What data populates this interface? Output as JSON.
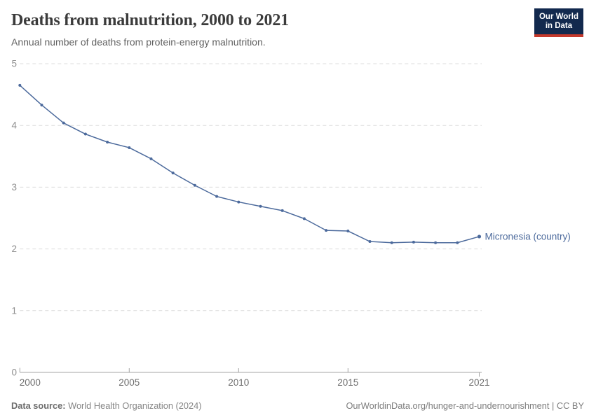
{
  "header": {
    "title": "Deaths from malnutrition, 2000 to 2021",
    "subtitle": "Annual number of deaths from protein-energy malnutrition.",
    "logo": {
      "line1": "Our World",
      "line2": "in Data"
    }
  },
  "chart_data": {
    "type": "line",
    "title": "Deaths from malnutrition, 2000 to 2021",
    "subtitle": "Annual number of deaths from protein-energy malnutrition.",
    "x": [
      2000,
      2001,
      2002,
      2003,
      2004,
      2005,
      2006,
      2007,
      2008,
      2009,
      2010,
      2011,
      2012,
      2013,
      2014,
      2015,
      2016,
      2017,
      2018,
      2019,
      2020,
      2021
    ],
    "series": [
      {
        "name": "Micronesia (country)",
        "color": "#4C6A9C",
        "values": [
          4.65,
          4.33,
          4.04,
          3.86,
          3.73,
          3.64,
          3.46,
          3.23,
          3.03,
          2.85,
          2.76,
          2.69,
          2.62,
          2.49,
          2.3,
          2.29,
          2.12,
          2.1,
          2.11,
          2.1,
          2.1,
          2.2
        ]
      }
    ],
    "xlabel": "",
    "ylabel": "",
    "xlim": [
      2000,
      2021
    ],
    "ylim": [
      0,
      5
    ],
    "x_ticks": [
      2000,
      2005,
      2010,
      2015,
      2021
    ],
    "y_ticks": [
      0,
      1,
      2,
      3,
      4,
      5
    ],
    "grid": "horizontal-dashed",
    "legend_position": "end-of-line-label"
  },
  "footer": {
    "datasource_label": "Data source:",
    "datasource_value": "World Health Organization (2024)",
    "link": "OurWorldinData.org/hunger-and-undernourishment | CC BY"
  },
  "colors": {
    "line": "#4C6A9C",
    "gridline": "#dcdcdc",
    "axis": "#a5a5a5",
    "y_tick_label": "#8f8f8f",
    "x_tick_label": "#6e6e6e",
    "title": "#3b3b3b",
    "subtitle": "#616161",
    "footer": "#858585",
    "logo_bg": "#12294e",
    "logo_stripe": "#c5392c"
  }
}
